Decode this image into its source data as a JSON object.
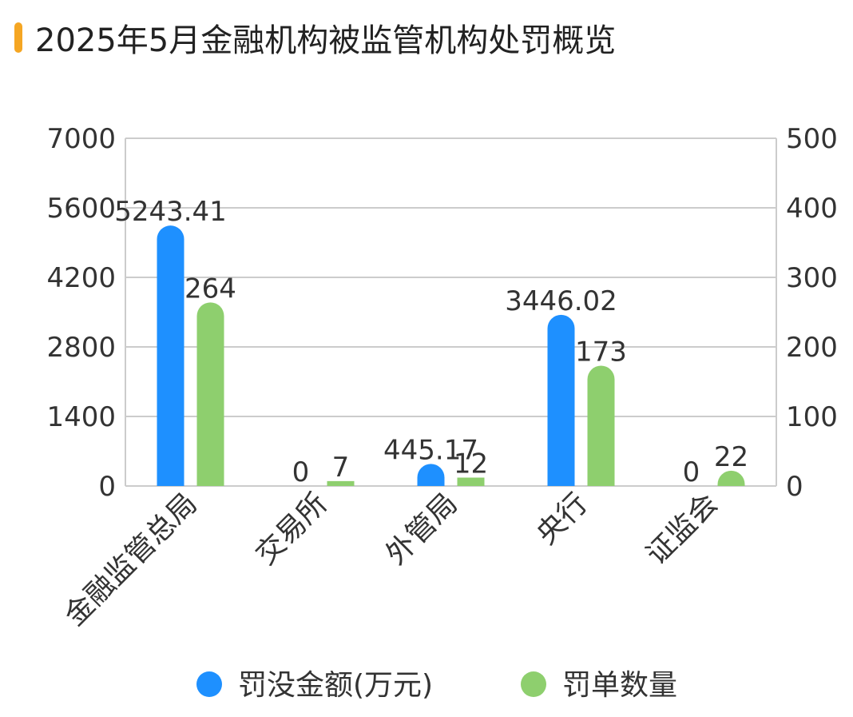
{
  "title": "2025年5月金融机构被监管机构处罚概览",
  "colors": {
    "accent": "#F5A623",
    "series1": "#1E90FF",
    "series2": "#8ECF6E",
    "grid": "#CCCCCC",
    "text": "#333333"
  },
  "chart_data": {
    "type": "bar",
    "categories": [
      "金融监管总局",
      "交易所",
      "外管局",
      "央行",
      "证监会"
    ],
    "series": [
      {
        "name": "罚没金额(万元)",
        "axis": "left",
        "values": [
          5243.41,
          0,
          445.17,
          3446.02,
          0
        ],
        "labels": [
          "5243.41",
          "0",
          "445.17",
          "3446.02",
          "0"
        ]
      },
      {
        "name": "罚单数量",
        "axis": "right",
        "values": [
          264,
          7,
          12,
          173,
          22
        ],
        "labels": [
          "264",
          "7",
          "12",
          "173",
          "22"
        ]
      }
    ],
    "y_left": {
      "min": 0,
      "max": 7000,
      "ticks": [
        "0",
        "1400",
        "2800",
        "4200",
        "5600",
        "7000"
      ]
    },
    "y_right": {
      "min": 0,
      "max": 500,
      "ticks": [
        "0",
        "100",
        "200",
        "300",
        "400",
        "500"
      ]
    },
    "grid": true,
    "legend_position": "bottom"
  }
}
